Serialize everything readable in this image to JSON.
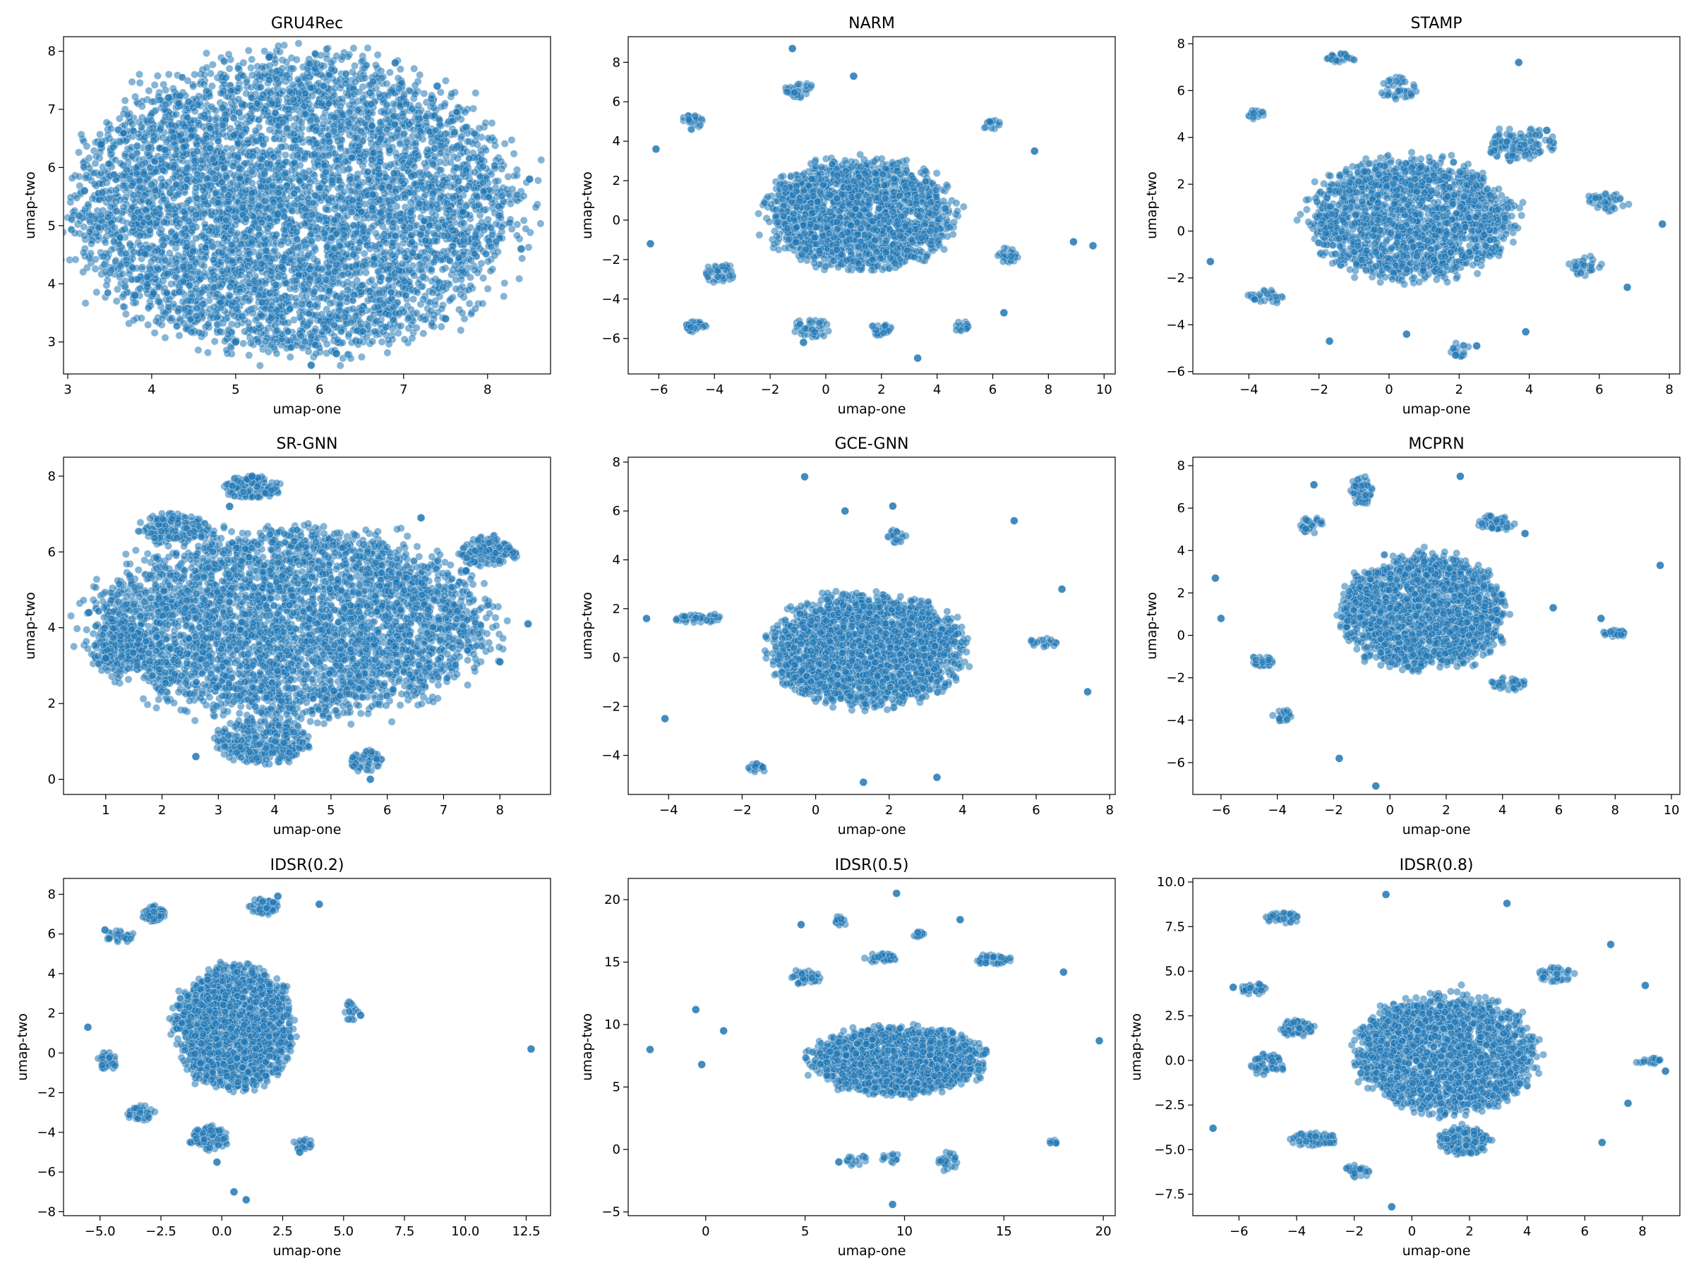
{
  "figure": {
    "point_color": "#1f77b4",
    "background": "#ffffff"
  },
  "chart_data": [
    {
      "type": "scatter",
      "title": "GRU4Rec",
      "xlabel": "umap-one",
      "ylabel": "umap-two",
      "xlim": [
        2.95,
        8.75
      ],
      "ylim": [
        2.45,
        8.25
      ],
      "xticks": [
        3,
        4,
        5,
        6,
        7,
        8
      ],
      "xticklabels": [
        "3",
        "4",
        "5",
        "6",
        "7",
        "8"
      ],
      "yticks": [
        3,
        4,
        5,
        6,
        7,
        8
      ],
      "yticklabels": [
        "3",
        "4",
        "5",
        "6",
        "7",
        "8"
      ],
      "legend": "none",
      "grid": false,
      "points": [
        [
          5.5,
          5.2
        ],
        [
          3.2,
          5.6
        ],
        [
          8.5,
          5.8
        ],
        [
          5.9,
          2.6
        ],
        [
          5.4,
          7.9
        ],
        [
          4.2,
          7.2
        ],
        [
          7.4,
          7.4
        ],
        [
          3.8,
          3.8
        ],
        [
          7.5,
          3.4
        ],
        [
          8.4,
          4.6
        ],
        [
          3.4,
          6.4
        ],
        [
          6.2,
          2.8
        ],
        [
          5.0,
          3.0
        ],
        [
          6.9,
          7.8
        ]
      ],
      "clusters": [
        [
          5.7,
          5.35,
          2.6,
          2.55,
          5500
        ]
      ]
    },
    {
      "type": "scatter",
      "title": "NARM",
      "xlabel": "umap-one",
      "ylabel": "umap-two",
      "xlim": [
        -7.1,
        10.4
      ],
      "ylim": [
        -7.8,
        9.3
      ],
      "xticks": [
        -6,
        -4,
        -2,
        0,
        2,
        4,
        6,
        8,
        10
      ],
      "xticklabels": [
        "−6",
        "−4",
        "−2",
        "0",
        "2",
        "4",
        "6",
        "8",
        "10"
      ],
      "yticks": [
        -6,
        -4,
        -2,
        0,
        2,
        4,
        6,
        8
      ],
      "yticklabels": [
        "−6",
        "−4",
        "−2",
        "0",
        "2",
        "4",
        "6",
        "8"
      ],
      "legend": "none",
      "grid": false,
      "points": [
        [
          -1.2,
          8.7
        ],
        [
          3.3,
          -7.0
        ],
        [
          9.6,
          -1.3
        ],
        [
          -6.3,
          -1.2
        ],
        [
          6.4,
          -4.7
        ],
        [
          -6.1,
          3.6
        ],
        [
          8.9,
          -1.1
        ],
        [
          7.5,
          3.5
        ],
        [
          -0.8,
          -6.2
        ],
        [
          1.0,
          7.3
        ]
      ],
      "clusters": [
        [
          1.2,
          0.3,
          3.4,
          2.8,
          1700
        ],
        [
          -4.7,
          -5.4,
          0.4,
          0.3,
          25
        ],
        [
          -0.5,
          -5.4,
          0.6,
          0.6,
          40
        ],
        [
          4.9,
          -5.4,
          0.3,
          0.3,
          15
        ],
        [
          -1.0,
          6.6,
          0.5,
          0.4,
          30
        ],
        [
          -4.8,
          5.0,
          0.4,
          0.4,
          25
        ],
        [
          6.0,
          4.8,
          0.3,
          0.3,
          15
        ],
        [
          -3.8,
          -2.7,
          0.6,
          0.5,
          40
        ],
        [
          2.0,
          -5.6,
          0.5,
          0.3,
          25
        ],
        [
          6.5,
          -1.8,
          0.4,
          0.4,
          25
        ]
      ]
    },
    {
      "type": "scatter",
      "title": "STAMP",
      "xlabel": "umap-one",
      "ylabel": "umap-two",
      "xlim": [
        -5.6,
        8.3
      ],
      "ylim": [
        -6.1,
        8.3
      ],
      "xticks": [
        -4,
        -2,
        0,
        2,
        4,
        6,
        8
      ],
      "xticklabels": [
        "−4",
        "−2",
        "0",
        "2",
        "4",
        "6",
        "8"
      ],
      "yticks": [
        -6,
        -4,
        -2,
        0,
        2,
        4,
        6,
        8
      ],
      "yticklabels": [
        "−6",
        "−4",
        "−2",
        "0",
        "2",
        "4",
        "6",
        "8"
      ],
      "legend": "none",
      "grid": false,
      "points": [
        [
          7.8,
          0.3
        ],
        [
          6.8,
          -2.4
        ],
        [
          -5.1,
          -1.3
        ],
        [
          1.9,
          -5.3
        ],
        [
          3.7,
          7.2
        ],
        [
          0.5,
          -4.4
        ],
        [
          3.9,
          -4.3
        ],
        [
          4.5,
          4.3
        ],
        [
          -1.7,
          -4.7
        ],
        [
          2.5,
          -4.9
        ]
      ],
      "clusters": [
        [
          0.6,
          0.5,
          2.9,
          2.6,
          1700
        ],
        [
          -1.4,
          7.4,
          0.4,
          0.2,
          30
        ],
        [
          0.3,
          6.1,
          0.5,
          0.5,
          40
        ],
        [
          3.7,
          3.7,
          1.0,
          0.7,
          120
        ],
        [
          6.3,
          1.3,
          0.6,
          0.4,
          40
        ],
        [
          -3.8,
          5.0,
          0.3,
          0.2,
          15
        ],
        [
          5.6,
          -1.5,
          0.5,
          0.4,
          30
        ],
        [
          -3.5,
          -2.8,
          0.5,
          0.3,
          30
        ],
        [
          2.0,
          -5.1,
          0.3,
          0.3,
          15
        ]
      ]
    },
    {
      "type": "scatter",
      "title": "SR-GNN",
      "xlabel": "umap-one",
      "ylabel": "umap-two",
      "xlim": [
        0.25,
        8.9
      ],
      "ylim": [
        -0.4,
        8.5
      ],
      "xticks": [
        1,
        2,
        3,
        4,
        5,
        6,
        7,
        8
      ],
      "xticklabels": [
        "1",
        "2",
        "3",
        "4",
        "5",
        "6",
        "7",
        "8"
      ],
      "yticks": [
        0,
        2,
        4,
        6,
        8
      ],
      "yticklabels": [
        "0",
        "2",
        "4",
        "6",
        "8"
      ],
      "legend": "none",
      "grid": false,
      "points": [
        [
          8.5,
          4.1
        ],
        [
          0.7,
          4.4
        ],
        [
          3.6,
          8.0
        ],
        [
          5.7,
          0.0
        ],
        [
          8.0,
          3.1
        ],
        [
          2.6,
          0.6
        ],
        [
          7.4,
          5.5
        ],
        [
          1.0,
          3.2
        ],
        [
          6.6,
          6.9
        ],
        [
          3.2,
          7.2
        ]
      ],
      "clusters": [
        [
          4.3,
          4.1,
          3.5,
          2.5,
          4000
        ],
        [
          3.6,
          7.7,
          0.5,
          0.3,
          120
        ],
        [
          5.6,
          0.5,
          0.3,
          0.3,
          60
        ],
        [
          3.8,
          1.0,
          0.8,
          0.6,
          300
        ],
        [
          7.8,
          6.0,
          0.5,
          0.4,
          150
        ],
        [
          2.2,
          6.6,
          0.6,
          0.4,
          150
        ],
        [
          1.2,
          3.5,
          0.5,
          0.8,
          150
        ]
      ]
    },
    {
      "type": "scatter",
      "title": "GCE-GNN",
      "xlabel": "umap-one",
      "ylabel": "umap-two",
      "xlim": [
        -5.1,
        8.15
      ],
      "ylim": [
        -5.6,
        8.2
      ],
      "xticks": [
        -4,
        -2,
        0,
        2,
        4,
        6,
        8
      ],
      "xticklabels": [
        "−4",
        "−2",
        "0",
        "2",
        "4",
        "6",
        "8"
      ],
      "yticks": [
        -4,
        -2,
        0,
        2,
        4,
        6,
        8
      ],
      "yticklabels": [
        "−4",
        "−2",
        "0",
        "2",
        "4",
        "6",
        "8"
      ],
      "legend": "none",
      "grid": false,
      "points": [
        [
          -0.3,
          7.4
        ],
        [
          7.4,
          -1.4
        ],
        [
          -4.6,
          1.6
        ],
        [
          1.3,
          -5.1
        ],
        [
          3.3,
          -4.9
        ],
        [
          5.4,
          5.6
        ],
        [
          -4.1,
          -2.5
        ],
        [
          6.7,
          2.8
        ],
        [
          0.8,
          6.0
        ],
        [
          2.1,
          6.2
        ]
      ],
      "clusters": [
        [
          1.4,
          0.3,
          2.6,
          2.3,
          2200
        ],
        [
          -3.2,
          1.6,
          0.7,
          0.2,
          40
        ],
        [
          -1.6,
          -4.5,
          0.3,
          0.2,
          20
        ],
        [
          6.2,
          0.6,
          0.4,
          0.2,
          20
        ],
        [
          2.2,
          5.0,
          0.3,
          0.3,
          20
        ]
      ]
    },
    {
      "type": "scatter",
      "title": "MCPRN",
      "xlabel": "umap-one",
      "ylabel": "umap-two",
      "xlim": [
        -7.0,
        10.3
      ],
      "ylim": [
        -7.5,
        8.4
      ],
      "xticks": [
        -6,
        -4,
        -2,
        0,
        2,
        4,
        6,
        8,
        10
      ],
      "xticklabels": [
        "−6",
        "−4",
        "−2",
        "0",
        "2",
        "4",
        "6",
        "8",
        "10"
      ],
      "yticks": [
        -6,
        -4,
        -2,
        0,
        2,
        4,
        6,
        8
      ],
      "yticklabels": [
        "−6",
        "−4",
        "−2",
        "0",
        "2",
        "4",
        "6",
        "8"
      ],
      "legend": "none",
      "grid": false,
      "points": [
        [
          9.6,
          3.3
        ],
        [
          -0.5,
          -7.1
        ],
        [
          -6.2,
          2.7
        ],
        [
          -6.0,
          0.8
        ],
        [
          7.5,
          0.8
        ],
        [
          4.8,
          4.8
        ],
        [
          -1.8,
          -5.8
        ],
        [
          2.5,
          7.5
        ],
        [
          -2.7,
          7.1
        ],
        [
          5.8,
          1.3
        ]
      ],
      "clusters": [
        [
          1.2,
          1.1,
          2.9,
          2.7,
          1800
        ],
        [
          -1.0,
          6.8,
          0.4,
          0.7,
          60
        ],
        [
          8.0,
          0.1,
          0.4,
          0.2,
          30
        ],
        [
          3.8,
          5.3,
          0.6,
          0.4,
          50
        ],
        [
          -2.8,
          5.2,
          0.4,
          0.4,
          30
        ],
        [
          4.2,
          -2.3,
          0.6,
          0.3,
          40
        ],
        [
          -3.8,
          -3.8,
          0.4,
          0.3,
          25
        ],
        [
          -4.5,
          -1.2,
          0.4,
          0.3,
          25
        ]
      ]
    },
    {
      "type": "scatter",
      "title": "IDSR(0.2)",
      "xlabel": "umap-one",
      "ylabel": "umap-two",
      "xlim": [
        -6.5,
        13.5
      ],
      "ylim": [
        -8.2,
        8.8
      ],
      "xticks": [
        -5,
        -2.5,
        0,
        2.5,
        5,
        7.5,
        10,
        12.5
      ],
      "xticklabels": [
        "−5.0",
        "−2.5",
        "0.0",
        "2.5",
        "5.0",
        "7.5",
        "10.0",
        "12.5"
      ],
      "yticks": [
        -8,
        -6,
        -4,
        -2,
        0,
        2,
        4,
        6,
        8
      ],
      "yticklabels": [
        "−8",
        "−6",
        "−4",
        "−2",
        "0",
        "2",
        "4",
        "6",
        "8"
      ],
      "legend": "none",
      "grid": false,
      "points": [
        [
          12.7,
          0.2
        ],
        [
          1.0,
          -7.4
        ],
        [
          0.5,
          -7.0
        ],
        [
          -5.5,
          1.3
        ],
        [
          5.7,
          1.9
        ],
        [
          -0.2,
          -5.5
        ],
        [
          2.3,
          7.9
        ],
        [
          4.0,
          7.5
        ],
        [
          -4.8,
          6.2
        ],
        [
          3.2,
          -5.0
        ]
      ],
      "clusters": [
        [
          0.5,
          1.3,
          2.4,
          3.1,
          1700
        ],
        [
          -2.8,
          7.0,
          0.5,
          0.4,
          60
        ],
        [
          1.7,
          7.4,
          0.6,
          0.4,
          60
        ],
        [
          -0.5,
          -4.3,
          0.8,
          0.6,
          120
        ],
        [
          -4.7,
          -0.4,
          0.4,
          0.5,
          40
        ],
        [
          -3.3,
          -3.0,
          0.6,
          0.4,
          40
        ],
        [
          5.3,
          2.1,
          0.3,
          0.5,
          20
        ],
        [
          3.3,
          -4.6,
          0.4,
          0.3,
          25
        ],
        [
          -4.2,
          5.9,
          0.6,
          0.3,
          30
        ]
      ]
    },
    {
      "type": "scatter",
      "title": "IDSR(0.5)",
      "xlabel": "umap-one",
      "ylabel": "umap-two",
      "xlim": [
        -3.9,
        20.6
      ],
      "ylim": [
        -5.3,
        21.7
      ],
      "xticks": [
        0,
        5,
        10,
        15,
        20
      ],
      "xticklabels": [
        "0",
        "5",
        "10",
        "15",
        "20"
      ],
      "yticks": [
        -5,
        0,
        5,
        10,
        15,
        20
      ],
      "yticklabels": [
        "−5",
        "0",
        "5",
        "10",
        "15",
        "20"
      ],
      "legend": "none",
      "grid": false,
      "points": [
        [
          9.6,
          20.5
        ],
        [
          9.4,
          -4.4
        ],
        [
          -2.8,
          8.0
        ],
        [
          19.8,
          8.7
        ],
        [
          -0.5,
          11.2
        ],
        [
          -0.2,
          6.8
        ],
        [
          18.0,
          14.2
        ],
        [
          6.7,
          -1.0
        ],
        [
          0.9,
          9.5
        ],
        [
          12.8,
          18.4
        ],
        [
          4.8,
          18.0
        ]
      ],
      "clusters": [
        [
          9.7,
          7.1,
          4.3,
          2.7,
          1500
        ],
        [
          6.8,
          18.3,
          0.3,
          0.4,
          15
        ],
        [
          10.7,
          17.2,
          0.3,
          0.3,
          15
        ],
        [
          14.4,
          15.2,
          0.9,
          0.4,
          40
        ],
        [
          12.2,
          -1.0,
          0.5,
          0.8,
          30
        ],
        [
          5.0,
          13.8,
          0.8,
          0.6,
          40
        ],
        [
          8.8,
          15.3,
          0.8,
          0.4,
          35
        ],
        [
          17.5,
          0.6,
          0.3,
          0.2,
          10
        ],
        [
          7.5,
          -0.8,
          0.6,
          0.5,
          15
        ],
        [
          9.3,
          -0.7,
          0.5,
          0.4,
          15
        ]
      ]
    },
    {
      "type": "scatter",
      "title": "IDSR(0.8)",
      "xlabel": "umap-one",
      "ylabel": "umap-two",
      "xlim": [
        -7.6,
        9.3
      ],
      "ylim": [
        -8.7,
        10.2
      ],
      "xticks": [
        -6,
        -4,
        -2,
        0,
        2,
        4,
        6,
        8
      ],
      "xticklabels": [
        "−6",
        "−4",
        "−2",
        "0",
        "2",
        "4",
        "6",
        "8"
      ],
      "yticks": [
        -7.5,
        -5,
        -2.5,
        0,
        2.5,
        5,
        7.5,
        10
      ],
      "yticklabels": [
        "−7.5",
        "−5.0",
        "−2.5",
        "0.0",
        "2.5",
        "5.0",
        "7.5",
        "10.0"
      ],
      "legend": "none",
      "grid": false,
      "points": [
        [
          -6.9,
          -3.8
        ],
        [
          8.1,
          4.2
        ],
        [
          8.8,
          -0.6
        ],
        [
          -0.9,
          9.3
        ],
        [
          3.3,
          8.8
        ],
        [
          6.6,
          -4.6
        ],
        [
          7.5,
          -2.4
        ],
        [
          -0.7,
          -8.2
        ],
        [
          6.9,
          6.5
        ],
        [
          -6.2,
          4.1
        ]
      ],
      "clusters": [
        [
          1.2,
          0.4,
          3.1,
          3.3,
          2000
        ],
        [
          -4.0,
          1.8,
          0.6,
          0.5,
          80
        ],
        [
          -4.5,
          8.0,
          0.6,
          0.3,
          40
        ],
        [
          -1.9,
          -6.2,
          0.5,
          0.4,
          30
        ],
        [
          -5.5,
          4.0,
          0.5,
          0.3,
          40
        ],
        [
          -3.4,
          -4.4,
          0.9,
          0.4,
          60
        ],
        [
          -5.0,
          -0.2,
          0.6,
          0.6,
          60
        ],
        [
          1.8,
          -4.5,
          0.9,
          0.8,
          150
        ],
        [
          5.0,
          4.8,
          0.6,
          0.4,
          40
        ],
        [
          8.2,
          0.0,
          0.5,
          0.2,
          20
        ]
      ]
    }
  ]
}
